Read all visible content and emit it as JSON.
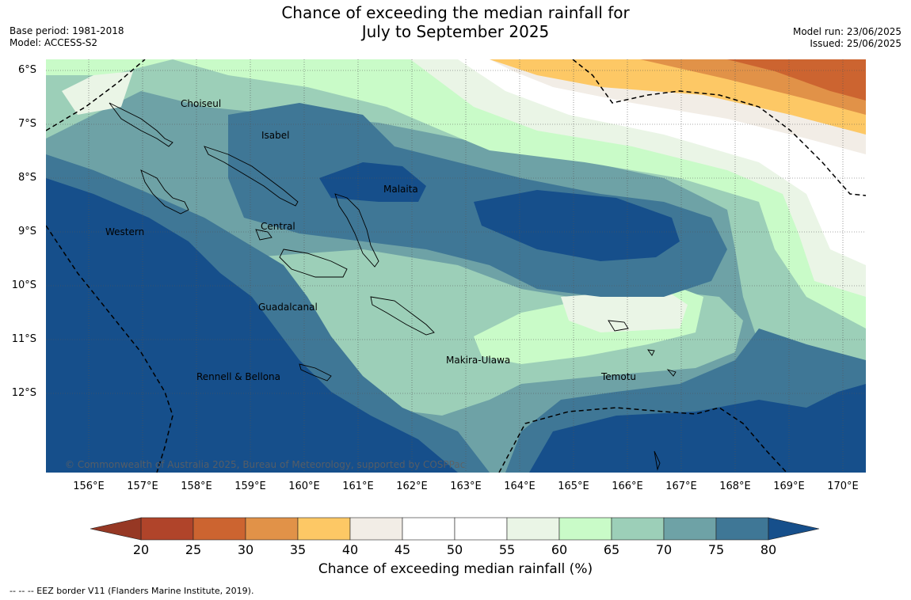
{
  "title": {
    "line1": "Chance of exceeding the median rainfall for",
    "line2": "July to September 2025"
  },
  "meta_left": {
    "base_period": "Base period: 1981-2018",
    "model": "Model: ACCESS-S2"
  },
  "meta_right": {
    "model_run": "Model run: 23/06/2025",
    "issued": "Issued: 25/06/2025"
  },
  "lat_ticks": [
    "6°S",
    "7°S",
    "8°S",
    "9°S",
    "10°S",
    "11°S",
    "12°S"
  ],
  "lon_ticks": [
    "156°E",
    "157°E",
    "158°E",
    "159°E",
    "160°E",
    "161°E",
    "162°E",
    "163°E",
    "164°E",
    "165°E",
    "166°E",
    "167°E",
    "168°E",
    "169°E",
    "170°E"
  ],
  "regions": [
    {
      "name": "Choiseul"
    },
    {
      "name": "Isabel"
    },
    {
      "name": "Malaita"
    },
    {
      "name": "Western"
    },
    {
      "name": "Central"
    },
    {
      "name": "Guadalcanal"
    },
    {
      "name": "Makira-Ulawa"
    },
    {
      "name": "Temotu"
    },
    {
      "name": "Rennell & Bellona"
    }
  ],
  "copyright": "© Commonwealth of Australia 2025, Bureau of Meteorology, supported by COSPPac",
  "colorbar": {
    "ticks": [
      "20",
      "25",
      "30",
      "35",
      "40",
      "45",
      "50",
      "55",
      "60",
      "65",
      "70",
      "75",
      "80"
    ],
    "colors": [
      "#b0442a",
      "#cc6430",
      "#e19248",
      "#fdc865",
      "#f2ede6",
      "#ffffff",
      "#ffffff",
      "#eaf5e6",
      "#c9fbc8",
      "#9ccfb8",
      "#6ea2a6",
      "#3f7796"
    ],
    "under_color": "#963824",
    "over_color": "#164f8b",
    "label": "Chance of exceeding median rainfall (%)"
  },
  "footnote": "--  --  -- EEZ border V11 (Flanders Marine Institute, 2019)."
}
